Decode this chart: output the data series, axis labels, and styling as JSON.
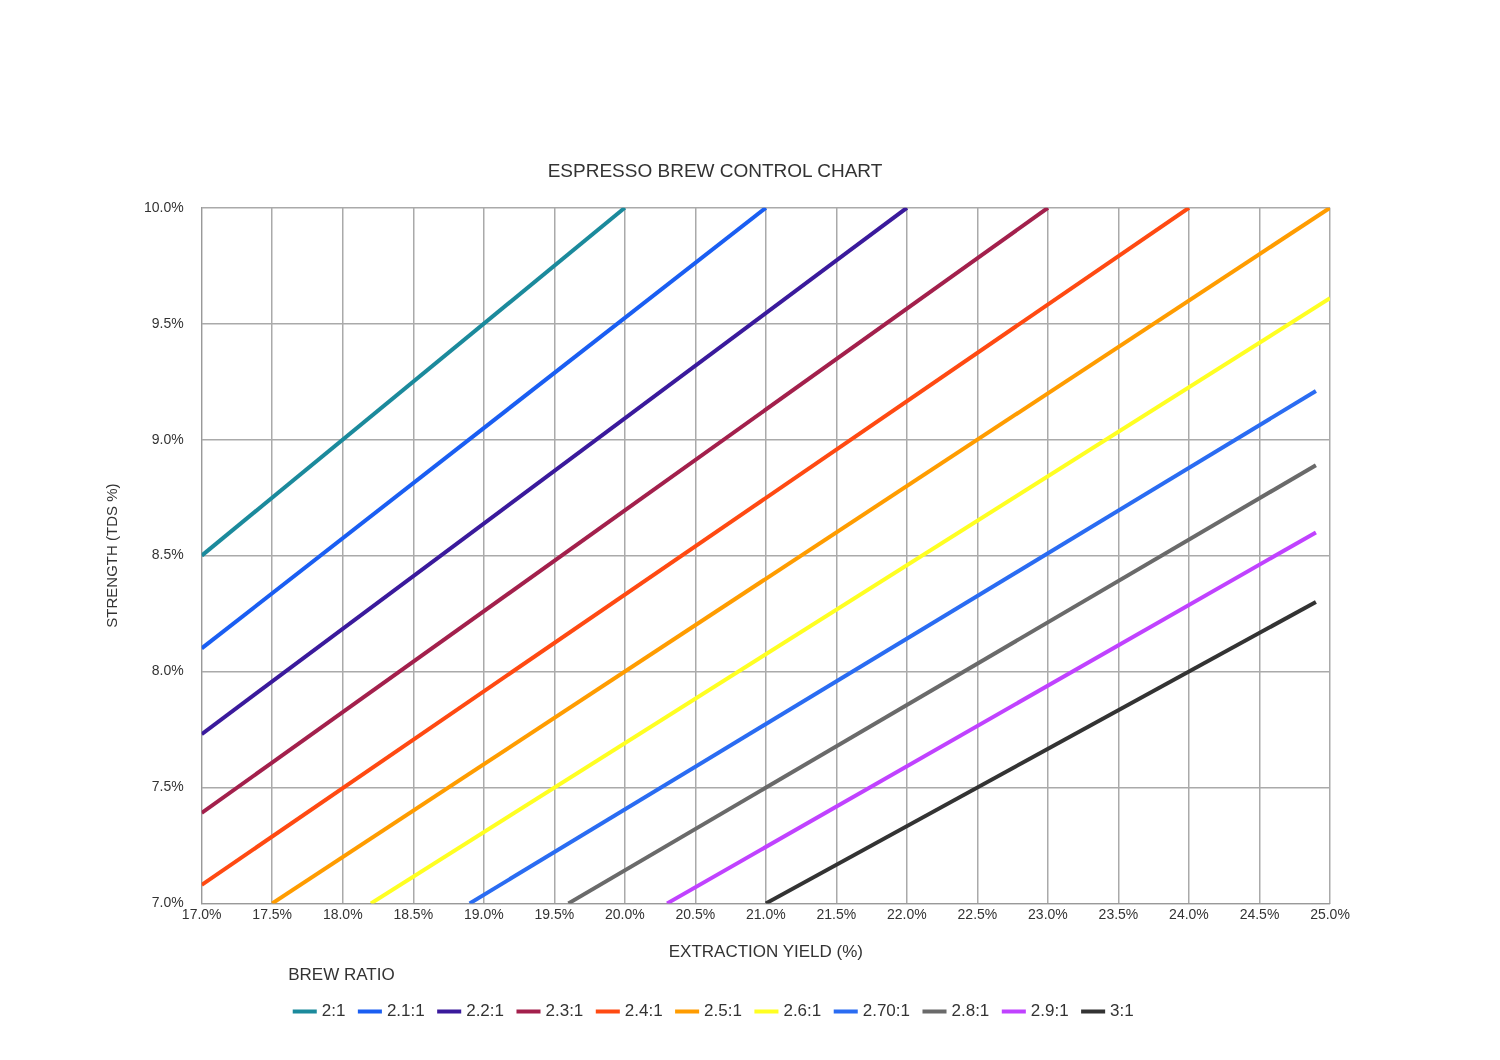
{
  "chart_data": {
    "type": "line",
    "title": "ESPRESSO BREW CONTROL CHART",
    "xlabel": "EXTRACTION YIELD (%)",
    "ylabel": "STRENGTH (TDS %)",
    "legend_title": "BREW RATIO",
    "legend": "bottom",
    "grid": true,
    "marker": "none",
    "line_style": "solid",
    "xlim": [
      17,
      25
    ],
    "ylim": [
      7,
      10
    ],
    "xticks": [
      {
        "value": 17,
        "label": "17.0%"
      },
      {
        "value": 17.5,
        "label": "17.5%"
      },
      {
        "value": 18,
        "label": "18.0%"
      },
      {
        "value": 18.5,
        "label": "18.5%"
      },
      {
        "value": 19,
        "label": "19.0%"
      },
      {
        "value": 19.5,
        "label": "19.5%"
      },
      {
        "value": 20,
        "label": "20.0%"
      },
      {
        "value": 20.5,
        "label": "20.5%"
      },
      {
        "value": 21,
        "label": "21.0%"
      },
      {
        "value": 21.5,
        "label": "21.5%"
      },
      {
        "value": 22,
        "label": "22.0%"
      },
      {
        "value": 22.5,
        "label": "22.5%"
      },
      {
        "value": 23,
        "label": "23.0%"
      },
      {
        "value": 23.5,
        "label": "23.5%"
      },
      {
        "value": 24,
        "label": "24.0%"
      },
      {
        "value": 24.5,
        "label": "24.5%"
      },
      {
        "value": 25,
        "label": "25.0%"
      }
    ],
    "yticks": [
      {
        "value": 7,
        "label": "7.0%"
      },
      {
        "value": 7.5,
        "label": "7.5%"
      },
      {
        "value": 8,
        "label": "8.0%"
      },
      {
        "value": 8.5,
        "label": "8.5%"
      },
      {
        "value": 9,
        "label": "9.0%"
      },
      {
        "value": 9.5,
        "label": "9.5%"
      },
      {
        "value": 10,
        "label": "10.0%"
      }
    ],
    "series": [
      {
        "name": "2:1",
        "color": "#1b8a9c",
        "x": [
          17,
          20
        ],
        "values": [
          8.5,
          10
        ]
      },
      {
        "name": "2.1:1",
        "color": "#1a5ef2",
        "x": [
          17,
          21
        ],
        "values": [
          8.1,
          10
        ]
      },
      {
        "name": "2.2:1",
        "color": "#3a1a9c",
        "x": [
          17,
          22
        ],
        "values": [
          7.73,
          10
        ]
      },
      {
        "name": "2.3:1",
        "color": "#a3204c",
        "x": [
          17,
          23
        ],
        "values": [
          7.39,
          10
        ]
      },
      {
        "name": "2.4:1",
        "color": "#ff4a12",
        "x": [
          17,
          24
        ],
        "values": [
          7.08,
          10
        ]
      },
      {
        "name": "2.5:1",
        "color": "#ff9c00",
        "x": [
          17.5,
          25
        ],
        "values": [
          7,
          10
        ]
      },
      {
        "name": "2.6:1",
        "color": "#ffff22",
        "x": [
          18.2,
          25
        ],
        "values": [
          7,
          9.61
        ]
      },
      {
        "name": "2.70:1",
        "color": "#2a6cf2",
        "x": [
          18.9,
          24.9
        ],
        "values": [
          7,
          9.21
        ]
      },
      {
        "name": "2.8:1",
        "color": "#6a6a6a",
        "x": [
          19.6,
          24.9
        ],
        "values": [
          7,
          8.89
        ]
      },
      {
        "name": "2.9:1",
        "color": "#c042ff",
        "x": [
          20.3,
          24.9
        ],
        "values": [
          7,
          8.6
        ]
      },
      {
        "name": "3:1",
        "color": "#333333",
        "x": [
          21,
          24.9
        ],
        "values": [
          7,
          8.3
        ]
      }
    ]
  }
}
